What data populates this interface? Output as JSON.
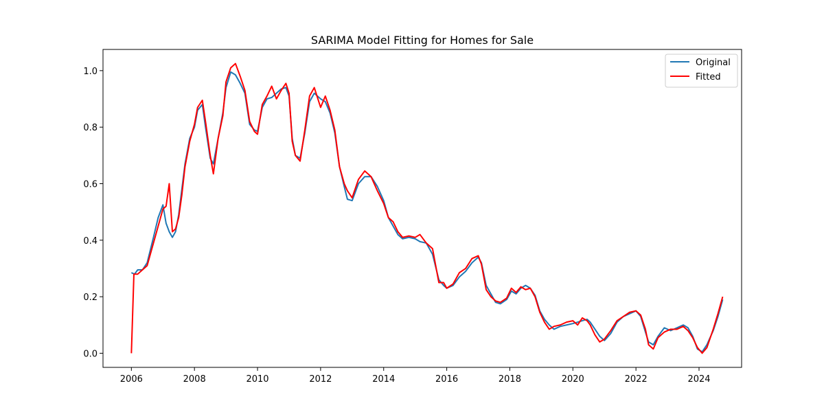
{
  "chart_data": {
    "type": "line",
    "title": "SARIMA Model Fitting for Homes for Sale",
    "xlabel": "",
    "ylabel": "",
    "xlim": [
      2005.1,
      2025.35
    ],
    "ylim": [
      -0.05,
      1.075
    ],
    "x_ticks": [
      2006,
      2008,
      2010,
      2012,
      2014,
      2016,
      2018,
      2020,
      2022,
      2024
    ],
    "y_ticks": [
      0.0,
      0.2,
      0.4,
      0.6,
      0.8,
      1.0
    ],
    "grid": false,
    "legend_position": "upper right",
    "series": [
      {
        "name": "Original",
        "color": "#1f77b4",
        "points": [
          [
            2006.0,
            0.285
          ],
          [
            2006.1,
            0.28
          ],
          [
            2006.2,
            0.295
          ],
          [
            2006.35,
            0.295
          ],
          [
            2006.5,
            0.32
          ],
          [
            2006.7,
            0.41
          ],
          [
            2006.85,
            0.48
          ],
          [
            2007.0,
            0.525
          ],
          [
            2007.1,
            0.46
          ],
          [
            2007.2,
            0.43
          ],
          [
            2007.3,
            0.41
          ],
          [
            2007.4,
            0.43
          ],
          [
            2007.5,
            0.49
          ],
          [
            2007.6,
            0.58
          ],
          [
            2007.7,
            0.67
          ],
          [
            2007.85,
            0.76
          ],
          [
            2008.0,
            0.8
          ],
          [
            2008.1,
            0.86
          ],
          [
            2008.25,
            0.88
          ],
          [
            2008.35,
            0.8
          ],
          [
            2008.5,
            0.69
          ],
          [
            2008.6,
            0.67
          ],
          [
            2008.75,
            0.76
          ],
          [
            2008.9,
            0.85
          ],
          [
            2009.0,
            0.94
          ],
          [
            2009.15,
            0.995
          ],
          [
            2009.3,
            0.985
          ],
          [
            2009.45,
            0.955
          ],
          [
            2009.6,
            0.92
          ],
          [
            2009.75,
            0.81
          ],
          [
            2009.9,
            0.79
          ],
          [
            2010.0,
            0.785
          ],
          [
            2010.15,
            0.87
          ],
          [
            2010.3,
            0.9
          ],
          [
            2010.45,
            0.905
          ],
          [
            2010.6,
            0.92
          ],
          [
            2010.75,
            0.935
          ],
          [
            2010.9,
            0.94
          ],
          [
            2011.0,
            0.91
          ],
          [
            2011.1,
            0.76
          ],
          [
            2011.2,
            0.7
          ],
          [
            2011.35,
            0.69
          ],
          [
            2011.5,
            0.78
          ],
          [
            2011.65,
            0.89
          ],
          [
            2011.8,
            0.92
          ],
          [
            2012.0,
            0.9
          ],
          [
            2012.15,
            0.89
          ],
          [
            2012.3,
            0.85
          ],
          [
            2012.45,
            0.78
          ],
          [
            2012.6,
            0.66
          ],
          [
            2012.75,
            0.59
          ],
          [
            2012.85,
            0.545
          ],
          [
            2013.0,
            0.54
          ],
          [
            2013.2,
            0.6
          ],
          [
            2013.4,
            0.625
          ],
          [
            2013.6,
            0.625
          ],
          [
            2013.8,
            0.59
          ],
          [
            2014.0,
            0.54
          ],
          [
            2014.15,
            0.48
          ],
          [
            2014.3,
            0.45
          ],
          [
            2014.45,
            0.42
          ],
          [
            2014.6,
            0.405
          ],
          [
            2014.8,
            0.41
          ],
          [
            2015.0,
            0.405
          ],
          [
            2015.15,
            0.395
          ],
          [
            2015.35,
            0.39
          ],
          [
            2015.55,
            0.35
          ],
          [
            2015.75,
            0.26
          ],
          [
            2015.9,
            0.24
          ],
          [
            2016.0,
            0.23
          ],
          [
            2016.2,
            0.24
          ],
          [
            2016.4,
            0.27
          ],
          [
            2016.6,
            0.29
          ],
          [
            2016.8,
            0.32
          ],
          [
            2017.0,
            0.34
          ],
          [
            2017.1,
            0.32
          ],
          [
            2017.25,
            0.24
          ],
          [
            2017.4,
            0.21
          ],
          [
            2017.55,
            0.18
          ],
          [
            2017.7,
            0.175
          ],
          [
            2017.9,
            0.19
          ],
          [
            2018.05,
            0.22
          ],
          [
            2018.2,
            0.21
          ],
          [
            2018.35,
            0.23
          ],
          [
            2018.5,
            0.24
          ],
          [
            2018.65,
            0.23
          ],
          [
            2018.8,
            0.205
          ],
          [
            2018.95,
            0.15
          ],
          [
            2019.1,
            0.12
          ],
          [
            2019.25,
            0.1
          ],
          [
            2019.4,
            0.085
          ],
          [
            2019.6,
            0.095
          ],
          [
            2019.8,
            0.1
          ],
          [
            2020.0,
            0.105
          ],
          [
            2020.15,
            0.11
          ],
          [
            2020.3,
            0.115
          ],
          [
            2020.45,
            0.12
          ],
          [
            2020.55,
            0.11
          ],
          [
            2020.7,
            0.085
          ],
          [
            2020.85,
            0.06
          ],
          [
            2021.0,
            0.045
          ],
          [
            2021.2,
            0.07
          ],
          [
            2021.4,
            0.11
          ],
          [
            2021.6,
            0.13
          ],
          [
            2021.8,
            0.14
          ],
          [
            2022.0,
            0.15
          ],
          [
            2022.15,
            0.13
          ],
          [
            2022.3,
            0.075
          ],
          [
            2022.4,
            0.04
          ],
          [
            2022.55,
            0.03
          ],
          [
            2022.7,
            0.06
          ],
          [
            2022.9,
            0.09
          ],
          [
            2023.1,
            0.08
          ],
          [
            2023.3,
            0.09
          ],
          [
            2023.5,
            0.1
          ],
          [
            2023.65,
            0.09
          ],
          [
            2023.8,
            0.06
          ],
          [
            2023.95,
            0.015
          ],
          [
            2024.1,
            0.005
          ],
          [
            2024.25,
            0.03
          ],
          [
            2024.45,
            0.08
          ],
          [
            2024.6,
            0.13
          ],
          [
            2024.75,
            0.19
          ]
        ]
      },
      {
        "name": "Fitted",
        "color": "#ff0000",
        "points": [
          [
            2006.0,
            0.0
          ],
          [
            2006.08,
            0.28
          ],
          [
            2006.2,
            0.28
          ],
          [
            2006.35,
            0.295
          ],
          [
            2006.5,
            0.31
          ],
          [
            2006.7,
            0.39
          ],
          [
            2006.85,
            0.45
          ],
          [
            2007.0,
            0.51
          ],
          [
            2007.1,
            0.52
          ],
          [
            2007.2,
            0.6
          ],
          [
            2007.3,
            0.43
          ],
          [
            2007.4,
            0.44
          ],
          [
            2007.5,
            0.48
          ],
          [
            2007.6,
            0.56
          ],
          [
            2007.7,
            0.66
          ],
          [
            2007.85,
            0.75
          ],
          [
            2008.0,
            0.81
          ],
          [
            2008.1,
            0.87
          ],
          [
            2008.25,
            0.895
          ],
          [
            2008.35,
            0.82
          ],
          [
            2008.5,
            0.7
          ],
          [
            2008.6,
            0.635
          ],
          [
            2008.75,
            0.76
          ],
          [
            2008.9,
            0.84
          ],
          [
            2009.0,
            0.96
          ],
          [
            2009.15,
            1.01
          ],
          [
            2009.3,
            1.025
          ],
          [
            2009.45,
            0.98
          ],
          [
            2009.6,
            0.93
          ],
          [
            2009.75,
            0.82
          ],
          [
            2009.9,
            0.785
          ],
          [
            2010.0,
            0.775
          ],
          [
            2010.15,
            0.88
          ],
          [
            2010.3,
            0.91
          ],
          [
            2010.45,
            0.945
          ],
          [
            2010.6,
            0.9
          ],
          [
            2010.75,
            0.93
          ],
          [
            2010.9,
            0.955
          ],
          [
            2011.0,
            0.92
          ],
          [
            2011.1,
            0.75
          ],
          [
            2011.2,
            0.7
          ],
          [
            2011.35,
            0.68
          ],
          [
            2011.5,
            0.79
          ],
          [
            2011.65,
            0.91
          ],
          [
            2011.8,
            0.94
          ],
          [
            2012.0,
            0.87
          ],
          [
            2012.15,
            0.91
          ],
          [
            2012.3,
            0.86
          ],
          [
            2012.45,
            0.79
          ],
          [
            2012.6,
            0.66
          ],
          [
            2012.75,
            0.6
          ],
          [
            2012.85,
            0.575
          ],
          [
            2013.0,
            0.55
          ],
          [
            2013.2,
            0.615
          ],
          [
            2013.4,
            0.645
          ],
          [
            2013.6,
            0.625
          ],
          [
            2013.8,
            0.575
          ],
          [
            2014.0,
            0.53
          ],
          [
            2014.15,
            0.48
          ],
          [
            2014.3,
            0.465
          ],
          [
            2014.45,
            0.43
          ],
          [
            2014.6,
            0.41
          ],
          [
            2014.8,
            0.415
          ],
          [
            2015.0,
            0.41
          ],
          [
            2015.15,
            0.42
          ],
          [
            2015.35,
            0.39
          ],
          [
            2015.55,
            0.37
          ],
          [
            2015.75,
            0.25
          ],
          [
            2015.9,
            0.25
          ],
          [
            2016.0,
            0.23
          ],
          [
            2016.2,
            0.245
          ],
          [
            2016.4,
            0.285
          ],
          [
            2016.6,
            0.3
          ],
          [
            2016.8,
            0.335
          ],
          [
            2017.0,
            0.345
          ],
          [
            2017.1,
            0.315
          ],
          [
            2017.25,
            0.225
          ],
          [
            2017.4,
            0.2
          ],
          [
            2017.55,
            0.185
          ],
          [
            2017.7,
            0.18
          ],
          [
            2017.9,
            0.195
          ],
          [
            2018.05,
            0.23
          ],
          [
            2018.2,
            0.215
          ],
          [
            2018.35,
            0.235
          ],
          [
            2018.5,
            0.225
          ],
          [
            2018.65,
            0.23
          ],
          [
            2018.8,
            0.2
          ],
          [
            2018.95,
            0.145
          ],
          [
            2019.1,
            0.11
          ],
          [
            2019.25,
            0.085
          ],
          [
            2019.4,
            0.095
          ],
          [
            2019.6,
            0.1
          ],
          [
            2019.8,
            0.11
          ],
          [
            2020.0,
            0.115
          ],
          [
            2020.15,
            0.1
          ],
          [
            2020.3,
            0.125
          ],
          [
            2020.45,
            0.115
          ],
          [
            2020.55,
            0.1
          ],
          [
            2020.7,
            0.065
          ],
          [
            2020.85,
            0.04
          ],
          [
            2021.0,
            0.05
          ],
          [
            2021.2,
            0.08
          ],
          [
            2021.4,
            0.115
          ],
          [
            2021.6,
            0.13
          ],
          [
            2021.8,
            0.145
          ],
          [
            2022.0,
            0.15
          ],
          [
            2022.15,
            0.135
          ],
          [
            2022.3,
            0.085
          ],
          [
            2022.4,
            0.03
          ],
          [
            2022.55,
            0.015
          ],
          [
            2022.7,
            0.055
          ],
          [
            2022.9,
            0.075
          ],
          [
            2023.1,
            0.085
          ],
          [
            2023.3,
            0.085
          ],
          [
            2023.5,
            0.095
          ],
          [
            2023.65,
            0.08
          ],
          [
            2023.8,
            0.055
          ],
          [
            2023.95,
            0.02
          ],
          [
            2024.1,
            0.0
          ],
          [
            2024.25,
            0.02
          ],
          [
            2024.45,
            0.085
          ],
          [
            2024.6,
            0.14
          ],
          [
            2024.75,
            0.2
          ]
        ]
      }
    ]
  }
}
